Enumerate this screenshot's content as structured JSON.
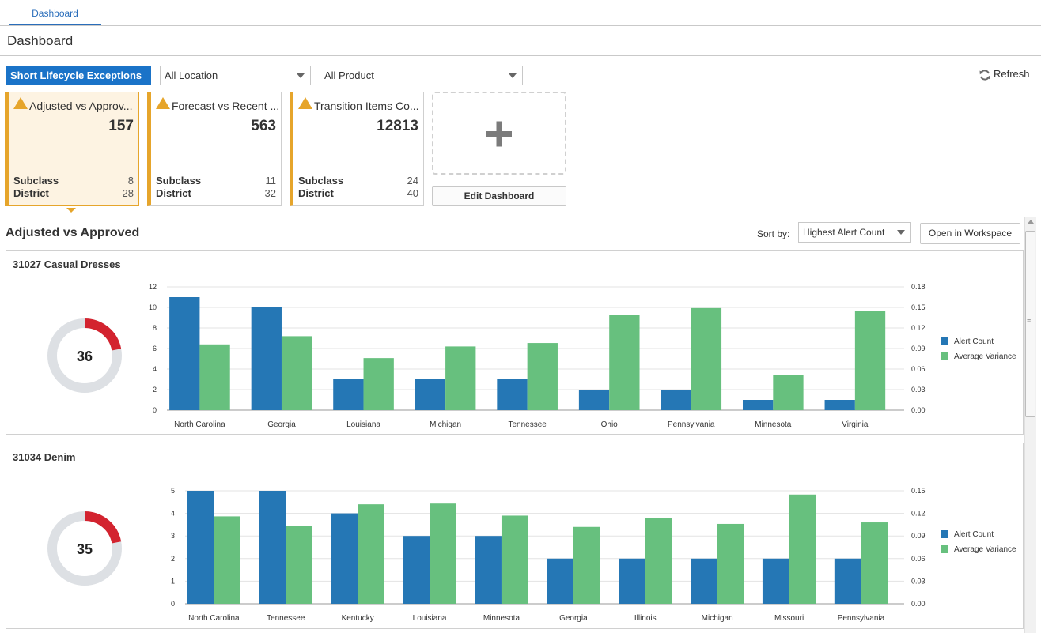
{
  "tabs": [
    {
      "label": "Dashboard"
    }
  ],
  "page_title": "Dashboard",
  "filters": {
    "scenario": "Short Lifecycle Exceptions",
    "location": "All Location",
    "product": "All Product"
  },
  "refresh_label": "Refresh",
  "tiles": [
    {
      "name": "Adjusted vs Approv...",
      "count": "157",
      "subclass_label": "Subclass",
      "subclass": "8",
      "district_label": "District",
      "district": "28",
      "selected": true
    },
    {
      "name": "Forecast vs Recent ...",
      "count": "563",
      "subclass_label": "Subclass",
      "subclass": "11",
      "district_label": "District",
      "district": "32",
      "selected": false
    },
    {
      "name": "Transition Items Co...",
      "count": "12813",
      "subclass_label": "Subclass",
      "subclass": "24",
      "district_label": "District",
      "district": "40",
      "selected": false
    }
  ],
  "edit_dashboard_label": "Edit Dashboard",
  "section": {
    "title": "Adjusted vs Approved",
    "sort_label": "Sort by:",
    "sort_value": "Highest Alert Count",
    "open_workspace_label": "Open in Workspace"
  },
  "colors": {
    "accent": "#1a73c8",
    "alert_count": "#2577b5",
    "average_variance": "#67c07e",
    "warning": "#e6a52b",
    "donut_red": "#d3232f",
    "donut_track": "#dde0e4"
  },
  "legend": {
    "alert_count": "Alert Count",
    "average_variance": "Average Variance"
  },
  "chart_data": [
    {
      "type": "bar",
      "title": "31027 Casual Dresses",
      "donut_value": "36",
      "donut_fraction": 0.22,
      "categories": [
        "North Carolina",
        "Georgia",
        "Louisiana",
        "Michigan",
        "Tennessee",
        "Ohio",
        "Pennsylvania",
        "Minnesota",
        "Virginia"
      ],
      "series": [
        {
          "name": "Alert Count",
          "axis": "left",
          "values": [
            11,
            10,
            3,
            3,
            3,
            2,
            2,
            1,
            1
          ]
        },
        {
          "name": "Average Variance",
          "axis": "right",
          "values": [
            0.096,
            0.108,
            0.076,
            0.093,
            0.098,
            0.139,
            0.149,
            0.051,
            0.145
          ]
        }
      ],
      "ylim_left": [
        0,
        12
      ],
      "yticks_left": [
        "0",
        "2",
        "4",
        "6",
        "8",
        "10",
        "12"
      ],
      "ylim_right": [
        0,
        0.18
      ],
      "yticks_right": [
        "0.00",
        "0.03",
        "0.06",
        "0.09",
        "0.12",
        "0.15",
        "0.18"
      ],
      "grid": true,
      "legend_position": "right"
    },
    {
      "type": "bar",
      "title": "31034 Denim",
      "donut_value": "35",
      "donut_fraction": 0.22,
      "categories": [
        "North Carolina",
        "Tennessee",
        "Kentucky",
        "Louisiana",
        "Minnesota",
        "Georgia",
        "Illinois",
        "Michigan",
        "Missouri",
        "Pennsylvania"
      ],
      "series": [
        {
          "name": "Alert Count",
          "axis": "left",
          "values": [
            5,
            5,
            4,
            3,
            3,
            2,
            2,
            2,
            2,
            2
          ]
        },
        {
          "name": "Average Variance",
          "axis": "right",
          "values": [
            0.116,
            0.103,
            0.132,
            0.133,
            0.117,
            0.102,
            0.114,
            0.106,
            0.145,
            0.108
          ]
        }
      ],
      "ylim_left": [
        0,
        5
      ],
      "yticks_left": [
        "0",
        "1",
        "2",
        "3",
        "4",
        "5"
      ],
      "ylim_right": [
        0,
        0.15
      ],
      "yticks_right": [
        "0.00",
        "0.03",
        "0.06",
        "0.09",
        "0.12",
        "0.15"
      ],
      "grid": true,
      "legend_position": "right"
    }
  ]
}
